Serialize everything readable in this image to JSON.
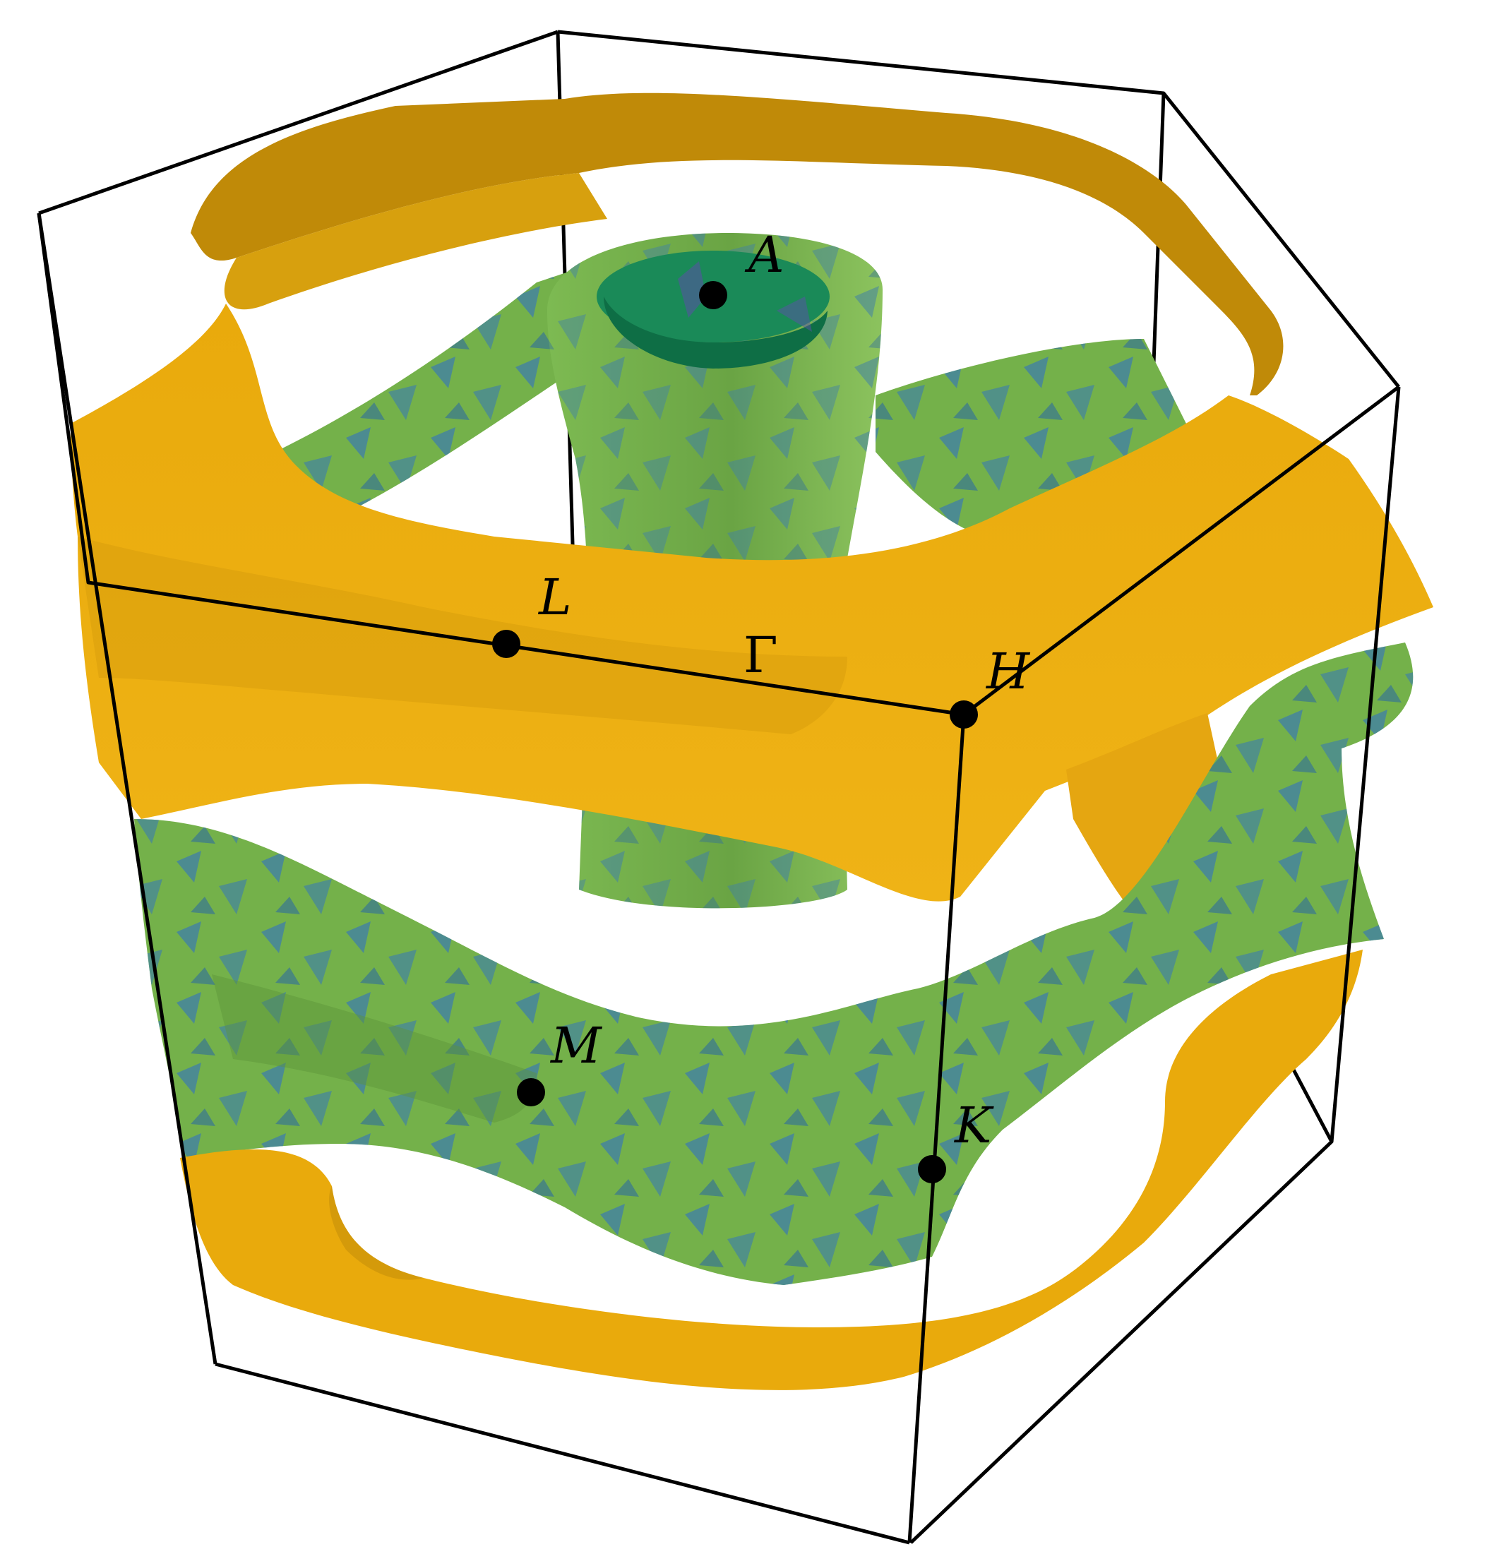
{
  "points": [
    {
      "id": "A",
      "label": "A"
    },
    {
      "id": "L",
      "label": "L"
    },
    {
      "id": "Gamma",
      "label": "Γ"
    },
    {
      "id": "H",
      "label": "H"
    },
    {
      "id": "M",
      "label": "M"
    },
    {
      "id": "K",
      "label": "K"
    }
  ],
  "colors": {
    "orange_band": "#E9AA0C",
    "orange_band_dark": "#C08A08",
    "green_sheet": "#74B14A",
    "green_sheet_dark": "#5E9439",
    "green_patch": "#3F7FA8",
    "cylinder_inner": "#0E6E45",
    "cylinder_top": "#1A8A58",
    "edge": "#000000"
  }
}
